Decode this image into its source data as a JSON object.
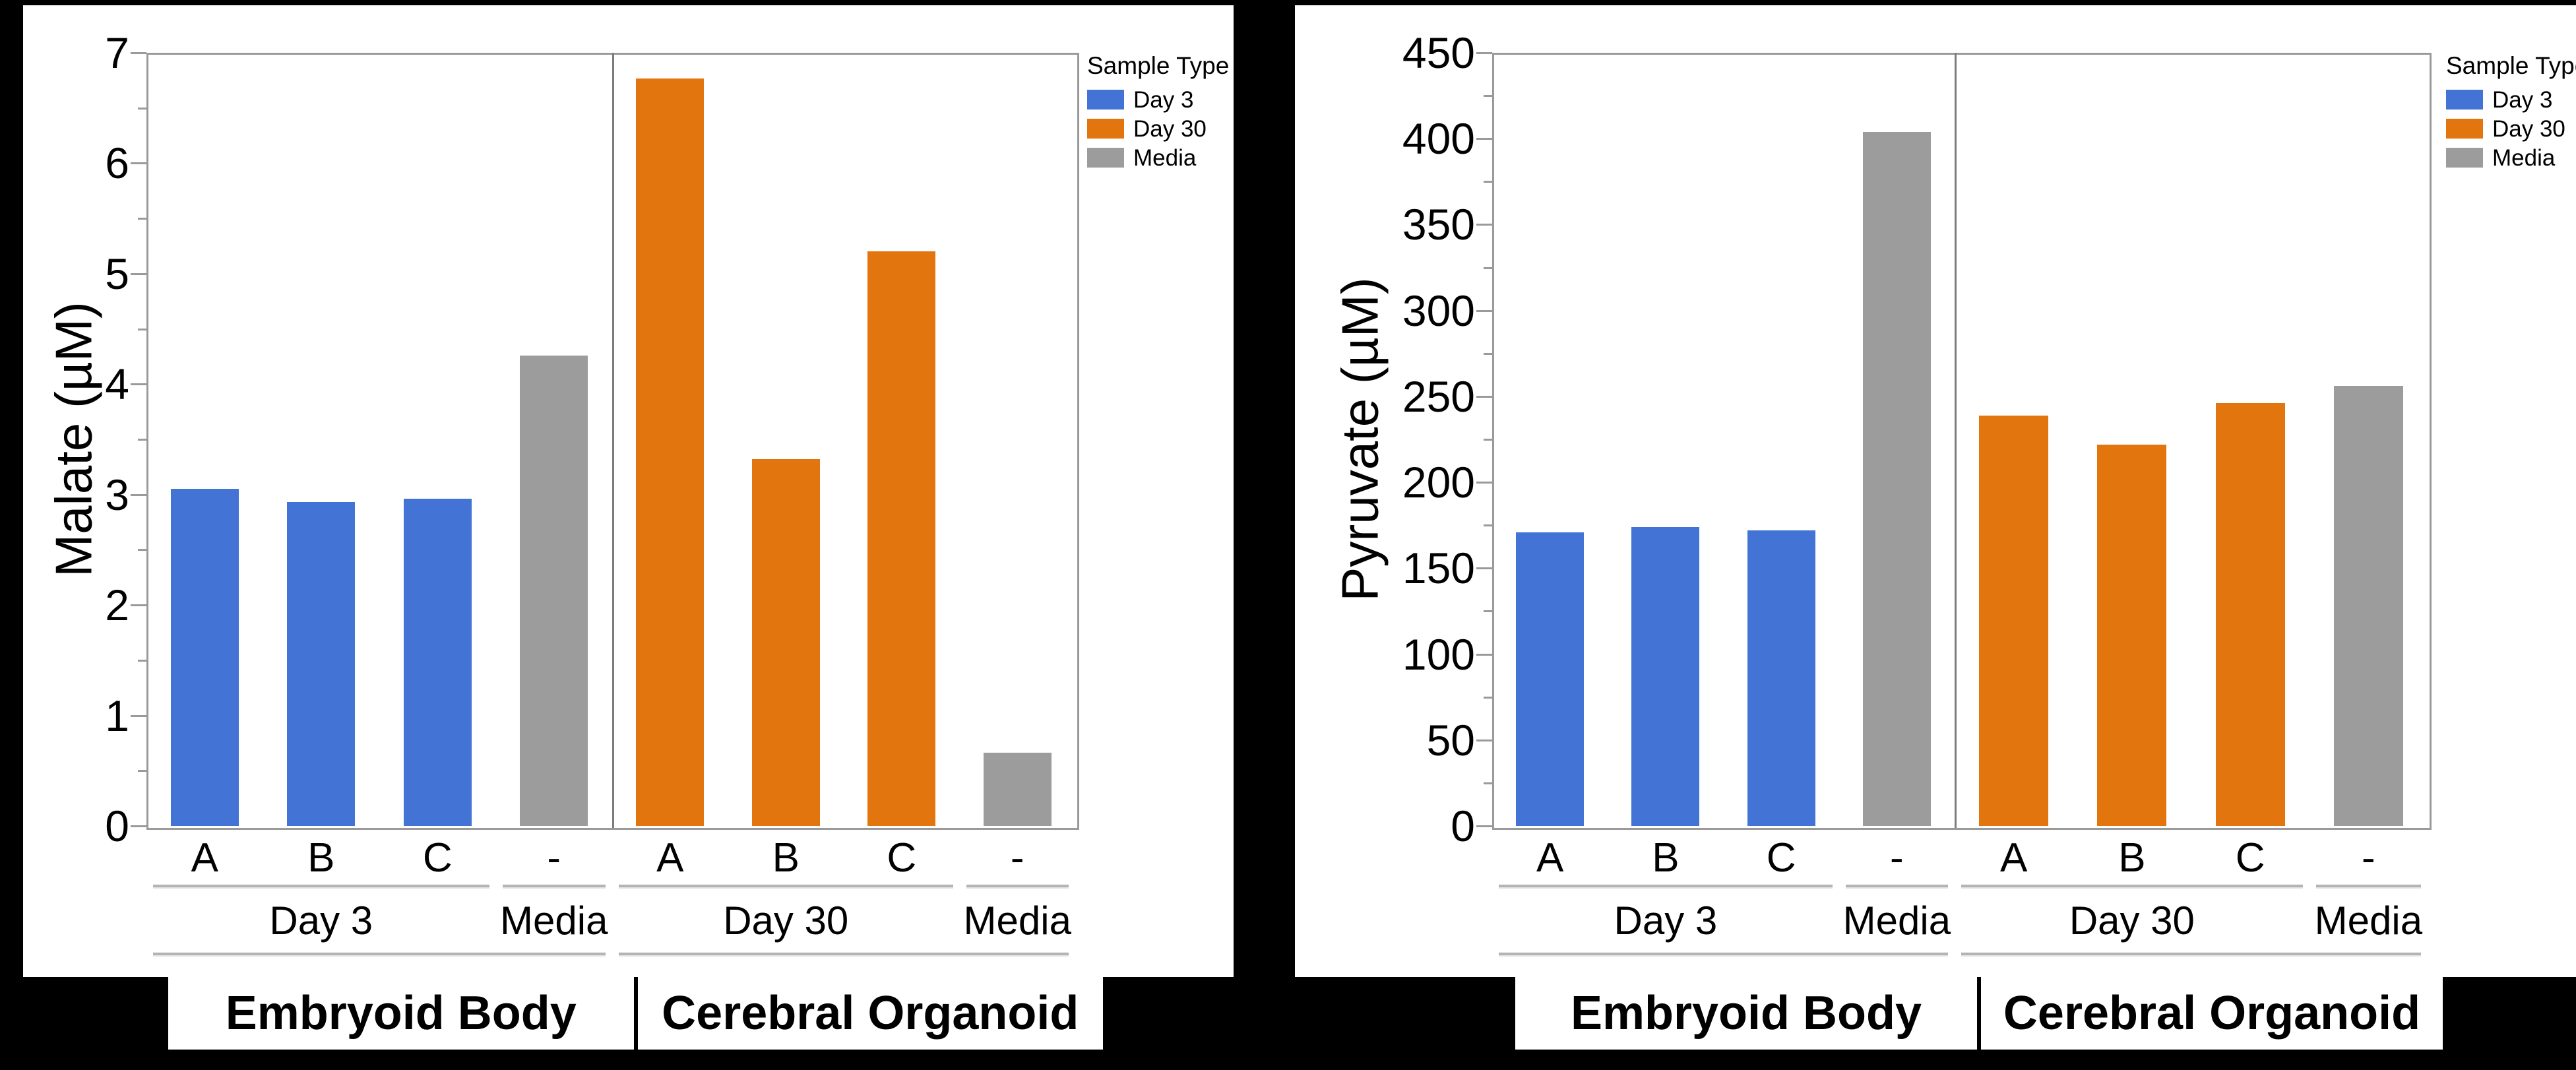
{
  "page": {
    "background": "#000000",
    "panel_background": "#FFFFFF"
  },
  "colors": {
    "day3": "#4373D4",
    "day30": "#E2750E",
    "media": "#9C9C9C",
    "frame": "#9A9A9A",
    "text": "#000000"
  },
  "legend": {
    "title": "Sample Type",
    "items": [
      {
        "label": "Day 3",
        "color_key": "day3"
      },
      {
        "label": "Day 30",
        "color_key": "day30"
      },
      {
        "label": "Media",
        "color_key": "media"
      }
    ]
  },
  "chart_data": [
    {
      "type": "bar",
      "title": "",
      "xlabel": "",
      "ylabel": "Malate (µM)",
      "ylim": [
        0,
        7
      ],
      "y_major_step": 1,
      "y_minor_step": 0.5,
      "grid": false,
      "legend_position": "outside-top-right",
      "x_tick_labels": [
        "A",
        "B",
        "C",
        "-",
        "A",
        "B",
        "C",
        "-"
      ],
      "categories": [
        "Day 3 A",
        "Day 3 B",
        "Day 3 C",
        "Media",
        "Day 30 A",
        "Day 30 B",
        "Day 30 C",
        "Media"
      ],
      "values": [
        3.05,
        2.93,
        2.96,
        4.26,
        6.77,
        3.32,
        5.2,
        0.66
      ],
      "bar_color_keys": [
        "day3",
        "day3",
        "day3",
        "media",
        "day30",
        "day30",
        "day30",
        "media"
      ],
      "groups": [
        {
          "label": "Day 3",
          "first_slot": 0,
          "last_slot": 2
        },
        {
          "label": "Media",
          "first_slot": 3,
          "last_slot": 3
        },
        {
          "label": "Day 30",
          "first_slot": 4,
          "last_slot": 6
        },
        {
          "label": "Media",
          "first_slot": 7,
          "last_slot": 7
        }
      ],
      "supergroups": [
        {
          "label": "Embryoid Body",
          "first_slot": 0,
          "last_slot": 3
        },
        {
          "label": "Cerebral Organoid",
          "first_slot": 4,
          "last_slot": 7
        }
      ]
    },
    {
      "type": "bar",
      "title": "",
      "xlabel": "",
      "ylabel": "Pyruvate (µM)",
      "ylim": [
        0,
        450
      ],
      "y_major_step": 50,
      "y_minor_step": 25,
      "grid": false,
      "legend_position": "outside-top-right",
      "x_tick_labels": [
        "A",
        "B",
        "C",
        "-",
        "A",
        "B",
        "C",
        "-"
      ],
      "categories": [
        "Day 3 A",
        "Day 3 B",
        "Day 3 C",
        "Media",
        "Day 30 A",
        "Day 30 B",
        "Day 30 C",
        "Media"
      ],
      "values": [
        171,
        174,
        172,
        404,
        239,
        222,
        246,
        256
      ],
      "bar_color_keys": [
        "day3",
        "day3",
        "day3",
        "media",
        "day30",
        "day30",
        "day30",
        "media"
      ],
      "groups": [
        {
          "label": "Day 3",
          "first_slot": 0,
          "last_slot": 2
        },
        {
          "label": "Media",
          "first_slot": 3,
          "last_slot": 3
        },
        {
          "label": "Day 30",
          "first_slot": 4,
          "last_slot": 6
        },
        {
          "label": "Media",
          "first_slot": 7,
          "last_slot": 7
        }
      ],
      "supergroups": [
        {
          "label": "Embryoid Body",
          "first_slot": 0,
          "last_slot": 3
        },
        {
          "label": "Cerebral Organoid",
          "first_slot": 4,
          "last_slot": 7
        }
      ]
    }
  ]
}
